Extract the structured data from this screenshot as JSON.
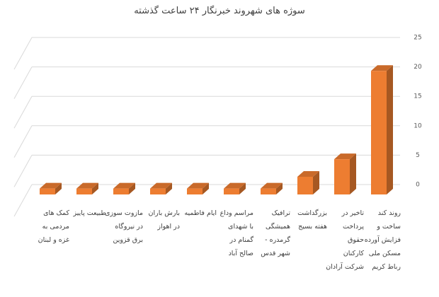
{
  "chart_data": {
    "type": "bar3d",
    "title": "سوژه های شهروند خبرنگار ۲۴ ساعت گذشته",
    "categories": [
      "کمک های مردمی به غزه و لبنان",
      "طبیعت پاییز",
      "مازوت سوزی در نیروگاه برق قزوین",
      "بارش باران در اهواز",
      "ایام فاطمیه",
      "مراسم وداع با شهدای گمنام در صالح آباد",
      "ترافیک همیشگی گرمدره - شهر قدس",
      "بزرگداشت هفته بسیج",
      "تاخیر در پرداخت حقوق کارکنان شرکت آرادان",
      "روند کند ساخت و فزایش آورده مسکن ملی رباط کریم"
    ],
    "values": [
      1,
      1,
      1,
      1,
      1,
      1,
      1,
      3,
      6,
      21
    ],
    "color": "#ed7d31",
    "ylim": [
      0,
      25
    ],
    "yticks": [
      0,
      5,
      10,
      15,
      20,
      25
    ],
    "grid": true
  }
}
